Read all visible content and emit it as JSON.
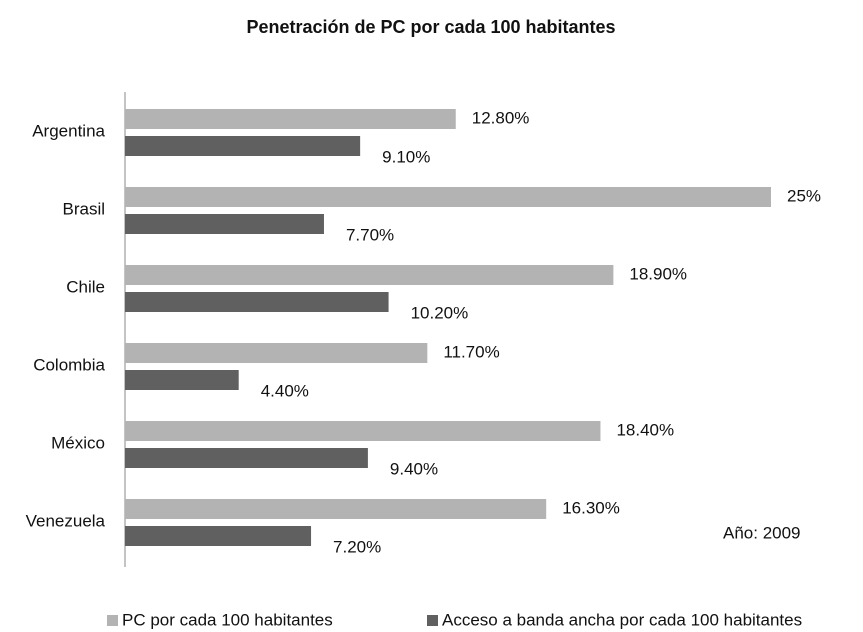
{
  "chart_data": {
    "type": "hbar",
    "title": "Penetración de PC por cada 100 habitantes",
    "annotation": "Año: 2009",
    "categories": [
      "Argentina",
      "Brasil",
      "Chile",
      "Colombia",
      "México",
      "Venezuela"
    ],
    "series": [
      {
        "name": "PC por cada 100 habitantes",
        "color": "#b3b3b3",
        "values": [
          12.8,
          25,
          18.9,
          11.7,
          18.4,
          16.3
        ],
        "value_labels": [
          "12.80%",
          "25%",
          "18.90%",
          "11.70%",
          "18.40%",
          "16.30%"
        ]
      },
      {
        "name": "Acceso a banda ancha por cada 100 habitantes",
        "color": "#606060",
        "values": [
          9.1,
          7.7,
          10.2,
          4.4,
          9.4,
          7.2
        ],
        "value_labels": [
          "9.10%",
          "7.70%",
          "10.20%",
          "4.40%",
          "9.40%",
          "7.20%"
        ]
      }
    ],
    "xlim": [
      0,
      25
    ],
    "legend": "bottom"
  }
}
